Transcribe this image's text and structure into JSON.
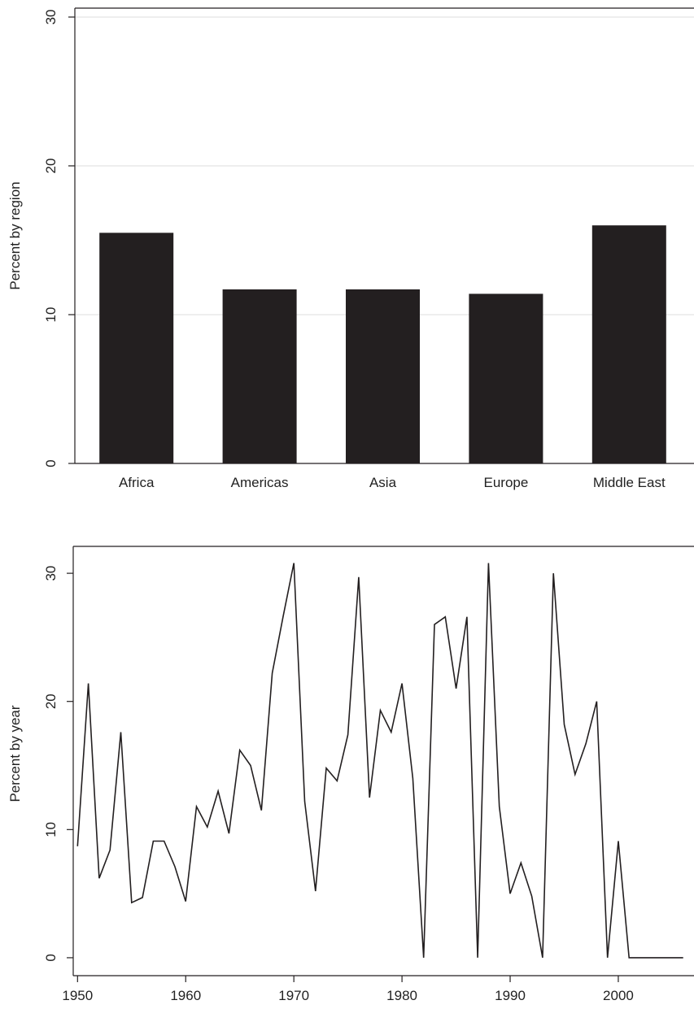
{
  "chart_data": [
    {
      "type": "bar",
      "title": "",
      "xlabel": "",
      "ylabel": "Percent by region",
      "ylim": [
        0,
        30.6
      ],
      "yticks": [
        0,
        10,
        20,
        30
      ],
      "grid": true,
      "categories": [
        "Africa",
        "Americas",
        "Asia",
        "Europe",
        "Middle East"
      ],
      "values": [
        15.5,
        11.7,
        11.7,
        11.4,
        16.0
      ],
      "colors": {
        "bar": "#231f20",
        "grid": "#dedede",
        "axis": "#231f20"
      }
    },
    {
      "type": "line",
      "title": "",
      "xlabel": "",
      "ylabel": "Percent by year",
      "xlim": [
        1949.6,
        2007
      ],
      "ylim": [
        -1.4,
        32.1
      ],
      "xticks": [
        1950,
        1960,
        1970,
        1980,
        1990,
        2000
      ],
      "yticks": [
        0,
        10,
        20,
        30
      ],
      "grid": false,
      "x": [
        1950,
        1951,
        1952,
        1953,
        1954,
        1955,
        1956,
        1957,
        1958,
        1959,
        1960,
        1961,
        1962,
        1963,
        1964,
        1965,
        1966,
        1967,
        1968,
        1969,
        1970,
        1971,
        1972,
        1973,
        1974,
        1975,
        1976,
        1977,
        1978,
        1979,
        1980,
        1981,
        1982,
        1983,
        1984,
        1985,
        1986,
        1987,
        1988,
        1989,
        1990,
        1991,
        1992,
        1993,
        1994,
        1995,
        1996,
        1997,
        1998,
        1999,
        2000,
        2001,
        2002,
        2003,
        2004,
        2005,
        2006
      ],
      "y": [
        8.7,
        21.4,
        6.2,
        8.4,
        17.6,
        4.3,
        4.7,
        9.1,
        9.1,
        7.1,
        4.4,
        11.8,
        10.2,
        13.0,
        9.7,
        16.2,
        15.0,
        11.5,
        22.2,
        26.6,
        30.8,
        12.2,
        5.2,
        14.8,
        13.8,
        17.4,
        29.7,
        12.5,
        19.3,
        17.6,
        21.4,
        14.0,
        0.0,
        26.0,
        26.6,
        21.0,
        26.6,
        0.0,
        30.8,
        11.8,
        5.0,
        7.4,
        4.8,
        0.0,
        30.0,
        18.2,
        14.3,
        16.7,
        20.0,
        0.0,
        9.1,
        0.0,
        0.0,
        0.0,
        0.0,
        0.0,
        0.0
      ],
      "colors": {
        "line": "#231f20",
        "axis": "#231f20"
      }
    }
  ]
}
